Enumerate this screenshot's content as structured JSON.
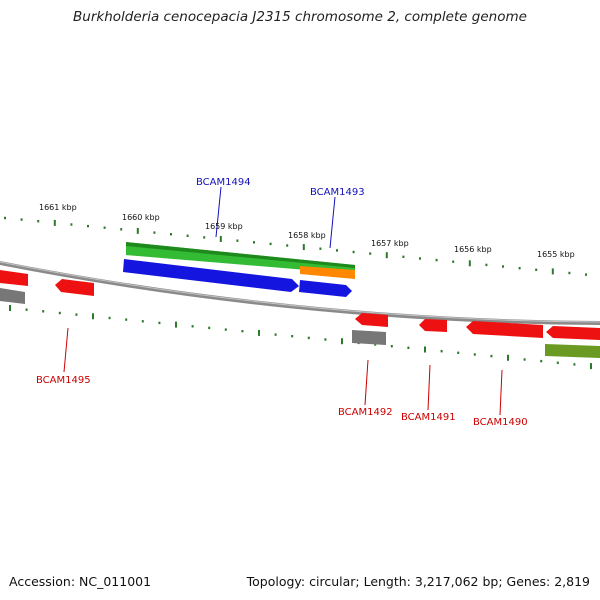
{
  "title": "Burkholderia cenocepacia J2315 chromosome 2, complete genome",
  "footer": {
    "accession": "Accession: NC_011001",
    "topology": "Topology: circular; Length: 3,217,062 bp; Genes: 2,819"
  },
  "colors": {
    "backbone": "#8a8a8a",
    "tick": "#2a7a2a",
    "cds": "#ee1111",
    "cds_blue": "#1515e0",
    "green": "#33bb33",
    "orange": "#ff8800",
    "grey": "#777777",
    "olive": "#6a9a22",
    "label_red": "#cc0000",
    "label_blue": "#1111bb"
  },
  "ticks": {
    "labels": [
      "1661 kbp",
      "1660 kbp",
      "1659 kbp",
      "1658 kbp",
      "1657 kbp",
      "1656 kbp",
      "1655 kbp"
    ]
  },
  "genes": {
    "labels": [
      "BCAM1494",
      "BCAM1493",
      "BCAM1495",
      "BCAM1492",
      "BCAM1491",
      "BCAM1490"
    ]
  }
}
